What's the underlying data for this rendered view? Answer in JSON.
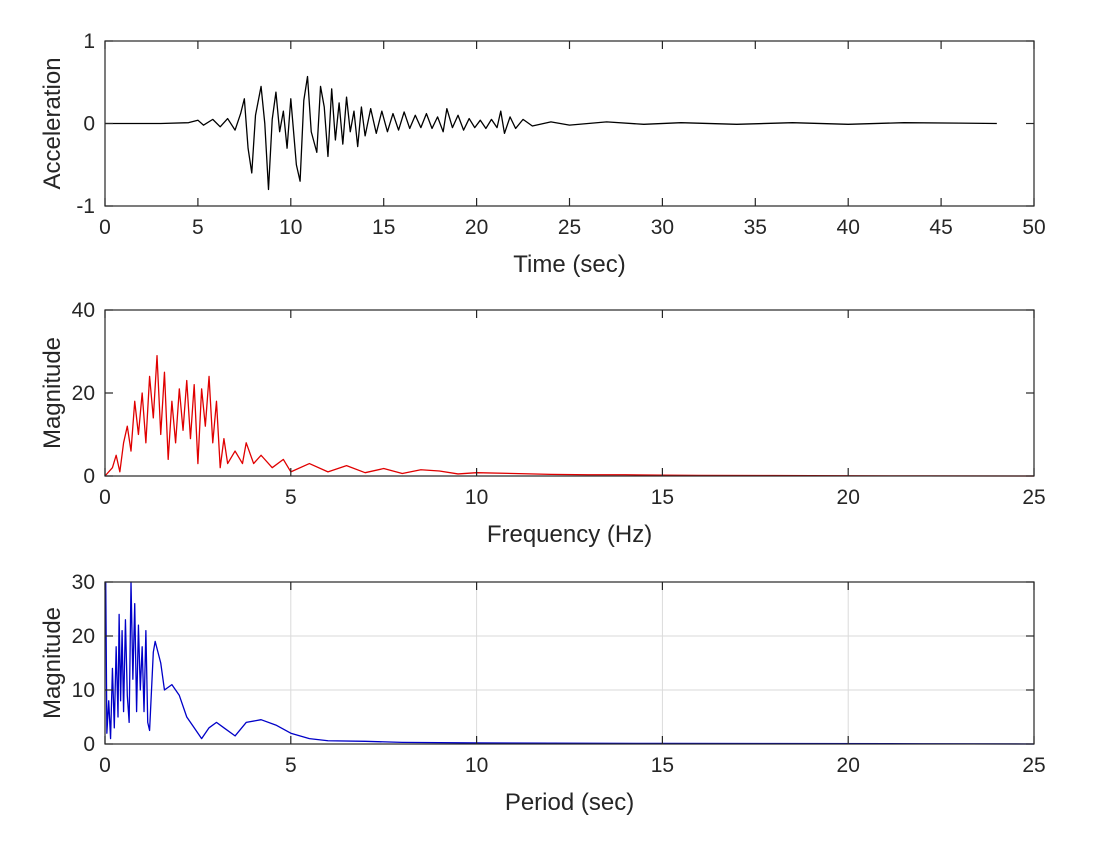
{
  "chart_data": [
    {
      "type": "line",
      "xlabel": "Time (sec)",
      "ylabel": "Acceleration",
      "xlim": [
        0,
        50
      ],
      "ylim": [
        -1,
        1
      ],
      "xticks": [
        0,
        5,
        10,
        15,
        20,
        25,
        30,
        35,
        40,
        45,
        50
      ],
      "yticks": [
        -1,
        0,
        1
      ],
      "grid": false,
      "series": [
        {
          "color": "#000000",
          "points": [
            [
              0,
              0
            ],
            [
              3,
              0
            ],
            [
              4.5,
              0.01
            ],
            [
              5,
              0.04
            ],
            [
              5.3,
              -0.02
            ],
            [
              5.8,
              0.05
            ],
            [
              6.2,
              -0.04
            ],
            [
              6.6,
              0.06
            ],
            [
              7.0,
              -0.08
            ],
            [
              7.3,
              0.12
            ],
            [
              7.5,
              0.3
            ],
            [
              7.7,
              -0.3
            ],
            [
              7.9,
              -0.6
            ],
            [
              8.1,
              0.1
            ],
            [
              8.4,
              0.45
            ],
            [
              8.6,
              0.0
            ],
            [
              8.8,
              -0.8
            ],
            [
              9.0,
              0.05
            ],
            [
              9.2,
              0.38
            ],
            [
              9.4,
              -0.1
            ],
            [
              9.6,
              0.15
            ],
            [
              9.8,
              -0.3
            ],
            [
              10.0,
              0.3
            ],
            [
              10.3,
              -0.5
            ],
            [
              10.5,
              -0.7
            ],
            [
              10.7,
              0.28
            ],
            [
              10.9,
              0.57
            ],
            [
              11.1,
              -0.1
            ],
            [
              11.4,
              -0.35
            ],
            [
              11.6,
              0.45
            ],
            [
              11.8,
              0.2
            ],
            [
              12.0,
              -0.4
            ],
            [
              12.2,
              0.42
            ],
            [
              12.4,
              -0.2
            ],
            [
              12.6,
              0.25
            ],
            [
              12.8,
              -0.25
            ],
            [
              13.0,
              0.32
            ],
            [
              13.2,
              -0.1
            ],
            [
              13.4,
              0.15
            ],
            [
              13.6,
              -0.28
            ],
            [
              13.8,
              0.2
            ],
            [
              14.0,
              -0.15
            ],
            [
              14.3,
              0.18
            ],
            [
              14.6,
              -0.12
            ],
            [
              14.9,
              0.15
            ],
            [
              15.2,
              -0.1
            ],
            [
              15.5,
              0.12
            ],
            [
              15.8,
              -0.08
            ],
            [
              16.1,
              0.14
            ],
            [
              16.4,
              -0.06
            ],
            [
              16.7,
              0.1
            ],
            [
              17.0,
              -0.05
            ],
            [
              17.3,
              0.12
            ],
            [
              17.6,
              -0.06
            ],
            [
              17.9,
              0.08
            ],
            [
              18.2,
              -0.1
            ],
            [
              18.4,
              0.18
            ],
            [
              18.7,
              -0.05
            ],
            [
              19.0,
              0.1
            ],
            [
              19.3,
              -0.08
            ],
            [
              19.6,
              0.06
            ],
            [
              19.9,
              -0.05
            ],
            [
              20.2,
              0.04
            ],
            [
              20.5,
              -0.06
            ],
            [
              20.8,
              0.05
            ],
            [
              21.1,
              -0.05
            ],
            [
              21.3,
              0.15
            ],
            [
              21.5,
              -0.12
            ],
            [
              21.8,
              0.08
            ],
            [
              22.1,
              -0.06
            ],
            [
              22.5,
              0.05
            ],
            [
              23,
              -0.03
            ],
            [
              24,
              0.02
            ],
            [
              25,
              -0.02
            ],
            [
              27,
              0.02
            ],
            [
              29,
              -0.01
            ],
            [
              31,
              0.01
            ],
            [
              34,
              -0.01
            ],
            [
              37,
              0.01
            ],
            [
              40,
              -0.01
            ],
            [
              43,
              0.01
            ],
            [
              46,
              0.005
            ],
            [
              48,
              0
            ]
          ]
        }
      ]
    },
    {
      "type": "line",
      "xlabel": "Frequency (Hz)",
      "ylabel": "Magnitude",
      "xlim": [
        0,
        25
      ],
      "ylim": [
        0,
        40
      ],
      "xticks": [
        0,
        5,
        10,
        15,
        20,
        25
      ],
      "yticks": [
        0,
        20,
        40
      ],
      "grid": false,
      "series": [
        {
          "color": "#e00000",
          "points": [
            [
              0,
              0
            ],
            [
              0.2,
              2
            ],
            [
              0.3,
              5
            ],
            [
              0.4,
              1
            ],
            [
              0.5,
              8
            ],
            [
              0.6,
              12
            ],
            [
              0.7,
              6
            ],
            [
              0.8,
              18
            ],
            [
              0.9,
              10
            ],
            [
              1.0,
              20
            ],
            [
              1.1,
              8
            ],
            [
              1.2,
              24
            ],
            [
              1.3,
              14
            ],
            [
              1.4,
              29
            ],
            [
              1.5,
              10
            ],
            [
              1.6,
              25
            ],
            [
              1.7,
              4
            ],
            [
              1.8,
              18
            ],
            [
              1.9,
              8
            ],
            [
              2.0,
              21
            ],
            [
              2.1,
              11
            ],
            [
              2.2,
              23
            ],
            [
              2.3,
              9
            ],
            [
              2.4,
              22
            ],
            [
              2.5,
              3
            ],
            [
              2.6,
              21
            ],
            [
              2.7,
              12
            ],
            [
              2.8,
              24
            ],
            [
              2.9,
              8
            ],
            [
              3.0,
              18
            ],
            [
              3.1,
              2
            ],
            [
              3.2,
              9
            ],
            [
              3.3,
              3
            ],
            [
              3.5,
              6
            ],
            [
              3.7,
              3
            ],
            [
              3.8,
              8
            ],
            [
              4.0,
              3
            ],
            [
              4.2,
              5
            ],
            [
              4.5,
              2
            ],
            [
              4.8,
              4
            ],
            [
              5.0,
              1
            ],
            [
              5.5,
              3
            ],
            [
              6.0,
              1
            ],
            [
              6.5,
              2.5
            ],
            [
              7.0,
              0.8
            ],
            [
              7.5,
              1.8
            ],
            [
              8.0,
              0.6
            ],
            [
              8.5,
              1.5
            ],
            [
              9.0,
              1.2
            ],
            [
              9.5,
              0.5
            ],
            [
              10,
              0.8
            ],
            [
              11,
              0.6
            ],
            [
              12,
              0.4
            ],
            [
              13,
              0.3
            ],
            [
              14,
              0.3
            ],
            [
              15,
              0.2
            ],
            [
              16,
              0.15
            ],
            [
              18,
              0.1
            ],
            [
              20,
              0.05
            ],
            [
              22,
              0.03
            ],
            [
              25,
              0
            ]
          ]
        }
      ]
    },
    {
      "type": "line",
      "xlabel": "Period (sec)",
      "ylabel": "Magnitude",
      "xlim": [
        0,
        25
      ],
      "ylim": [
        0,
        30
      ],
      "xticks": [
        0,
        5,
        10,
        15,
        20,
        25
      ],
      "yticks": [
        0,
        10,
        20,
        30
      ],
      "grid": true,
      "series": [
        {
          "color": "#0000c8",
          "points": [
            [
              0.02,
              30
            ],
            [
              0.05,
              2
            ],
            [
              0.1,
              8
            ],
            [
              0.15,
              1
            ],
            [
              0.2,
              14
            ],
            [
              0.25,
              3
            ],
            [
              0.3,
              18
            ],
            [
              0.35,
              5
            ],
            [
              0.38,
              24
            ],
            [
              0.42,
              8
            ],
            [
              0.46,
              21
            ],
            [
              0.5,
              6
            ],
            [
              0.55,
              23
            ],
            [
              0.6,
              9
            ],
            [
              0.65,
              4
            ],
            [
              0.7,
              30
            ],
            [
              0.75,
              12
            ],
            [
              0.8,
              26
            ],
            [
              0.85,
              6
            ],
            [
              0.9,
              22
            ],
            [
              0.95,
              10
            ],
            [
              1.0,
              18
            ],
            [
              1.05,
              6
            ],
            [
              1.1,
              21
            ],
            [
              1.15,
              4
            ],
            [
              1.2,
              2.5
            ],
            [
              1.3,
              17
            ],
            [
              1.35,
              19
            ],
            [
              1.5,
              15
            ],
            [
              1.6,
              10
            ],
            [
              1.8,
              11
            ],
            [
              2.0,
              9
            ],
            [
              2.2,
              5
            ],
            [
              2.4,
              3
            ],
            [
              2.6,
              1
            ],
            [
              2.8,
              3
            ],
            [
              3.0,
              4
            ],
            [
              3.2,
              3
            ],
            [
              3.5,
              1.5
            ],
            [
              3.8,
              4
            ],
            [
              4.2,
              4.5
            ],
            [
              4.6,
              3.5
            ],
            [
              5.0,
              2
            ],
            [
              5.5,
              1
            ],
            [
              6.0,
              0.6
            ],
            [
              7.0,
              0.5
            ],
            [
              8.0,
              0.3
            ],
            [
              10,
              0.2
            ],
            [
              12,
              0.15
            ],
            [
              15,
              0.1
            ],
            [
              18,
              0.08
            ],
            [
              22,
              0.05
            ],
            [
              25,
              0
            ]
          ]
        }
      ]
    }
  ]
}
